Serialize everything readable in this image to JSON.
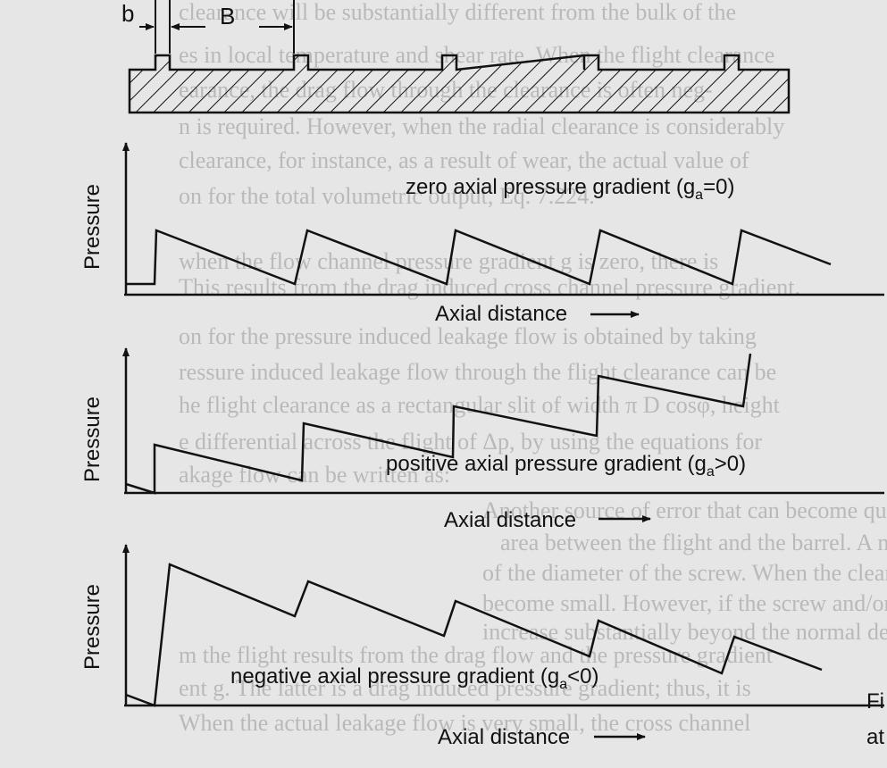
{
  "screw": {
    "b_label": "b",
    "B_label": "B"
  },
  "panels": [
    {
      "label_main": "zero axial pressure gradient (g",
      "label_sub": "a",
      "label_tail": "=0)",
      "ylabel": "Pressure",
      "xlabel": "Axial distance"
    },
    {
      "label_main": "positive axial pressure gradient (g",
      "label_sub": "a",
      "label_tail": ">0)",
      "ylabel": "Pressure",
      "xlabel": "Axial distance"
    },
    {
      "label_main": "negative axial pressure gradient (g",
      "label_sub": "a",
      "label_tail": "<0)",
      "ylabel": "Pressure",
      "xlabel": "Axial distance"
    }
  ],
  "edge_text": {
    "fi": "Fi",
    "at": "at"
  },
  "background_lines": [
    "clearance will be substantially different from the bulk of the",
    "es in local temperature and shear rate. When the flight clearance",
    "earance, the drag flow through the clearance is often neg-",
    "n is required. However, when the radial clearance is considerably",
    "clearance, for instance, as a result of wear, the actual value of",
    "on for the total volumetric output, Eq. 7.224.",
    "when the flow channel pressure gradient g is zero, there is",
    "This results from the drag induced cross channel pressure gradient.",
    "on for the pressure induced leakage flow is obtained by taking",
    "ressure induced leakage flow through the flight clearance can be",
    "he flight clearance as a rectangular slit of width π D cosφ, height",
    "e differential across the flight of Δp, by using the equations for",
    "akage flow can be written as:",
    "Another source of error that can become quite important is the l",
    "area between the flight and the barrel. A normal design clearance",
    "of the diameter of the screw. When the clearance is normal, the",
    "become small. However, if the screw and/or barrel is subject to",
    "increase substantially beyond the normal design clearance. This c",
    "m the flight results from the drag flow and the pressure gradient",
    "ent g. The latter is a drag induced pressure gradient; thus, it is",
    "When the actual leakage flow is very small, the cross channel"
  ]
}
